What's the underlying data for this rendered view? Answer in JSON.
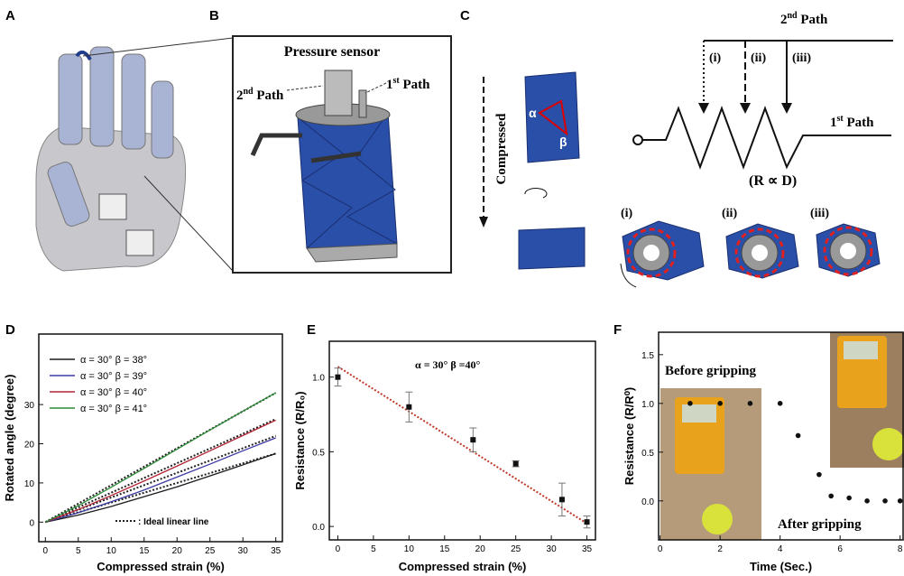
{
  "figure": {
    "panel_labels": [
      "A",
      "B",
      "C",
      "D",
      "E",
      "F"
    ],
    "b": {
      "title": "Pressure sensor",
      "path2": [
        "2",
        "nd",
        " Path"
      ],
      "path1": [
        "1",
        "st",
        " Path"
      ]
    },
    "c": {
      "compressed": "Compressed",
      "alpha": "α",
      "beta": "β",
      "path2": [
        "2",
        "nd",
        " Path"
      ],
      "path1": [
        "1",
        "st",
        " Path"
      ],
      "positions": [
        "(i)",
        "(ii)",
        "(iii)"
      ],
      "relation": "(R ∝ D)",
      "states": [
        "(i)",
        "(ii)",
        "(iii)"
      ]
    }
  },
  "chart_data": [
    {
      "type": "line",
      "x_label": "Compressed strain (%)",
      "y_label": "Rotated angle (degree)",
      "x": [
        0,
        5,
        10,
        15,
        20,
        25,
        30,
        35
      ],
      "series": [
        {
          "name": "α = 30° β = 38°",
          "color": "#1a1a1a",
          "values": [
            0,
            1.8,
            4.0,
            6.5,
            9.0,
            11.8,
            14.6,
            17.5
          ]
        },
        {
          "name": "α = 30° β = 39°",
          "color": "#3a3aa0",
          "values": [
            0,
            2.4,
            5.2,
            8.2,
            11.5,
            14.8,
            18.2,
            21.5
          ]
        },
        {
          "name": "α = 30° β = 40°",
          "color": "#b22234",
          "values": [
            0,
            3.2,
            6.8,
            10.5,
            14.3,
            18.2,
            22.1,
            26
          ]
        },
        {
          "name": "α = 30° β = 41°",
          "color": "#2e8b3a",
          "values": [
            0,
            4.2,
            8.9,
            13.7,
            18.6,
            23.5,
            28.3,
            33
          ]
        }
      ],
      "reference_lines": {
        "label": ": Ideal linear line",
        "color": "#222",
        "x": [
          0,
          35
        ],
        "values": [
          [
            0,
            17.5
          ],
          [
            0,
            22
          ],
          [
            0,
            26.3
          ],
          [
            0,
            33
          ]
        ]
      },
      "xlim": [
        -1,
        36
      ],
      "xticks": [
        0,
        5,
        10,
        15,
        20,
        25,
        30,
        35
      ],
      "ylim": [
        -5,
        48
      ],
      "yticks": [
        0,
        10,
        20,
        30
      ]
    },
    {
      "type": "scatter",
      "annotations": [
        "α = 30° β =40°"
      ],
      "x_label": "Compressed strain (%)",
      "y_label": "Resistance (R/R₀)",
      "x": [
        0,
        10,
        19,
        25,
        31.5,
        35
      ],
      "values": [
        1.0,
        0.8,
        0.58,
        0.42,
        0.18,
        0.03
      ],
      "errors": [
        0.06,
        0.1,
        0.08,
        0.02,
        0.11,
        0.04
      ],
      "color": "#111",
      "fit": {
        "color": "#c0392b",
        "x": [
          0,
          35
        ],
        "values": [
          1.07,
          0.02
        ]
      },
      "xlim": [
        -1.2,
        36.2
      ],
      "xticks": [
        0,
        5,
        10,
        15,
        20,
        25,
        30,
        35
      ],
      "ylim": [
        -0.09,
        1.24
      ],
      "yticks": [
        {
          "value": 0,
          "label": "0.0"
        },
        0.5,
        {
          "value": 1,
          "label": "1.0"
        }
      ]
    },
    {
      "type": "scatter",
      "annotations": [
        "Before gripping",
        "After gripping"
      ],
      "x_label": "Time (Sec.)",
      "y_label": "Resistance (R/R⁰)",
      "x": [
        1,
        2,
        3,
        4,
        4.6,
        5.3,
        5.7,
        6.3,
        6.9,
        7.5,
        8
      ],
      "values": [
        1,
        1,
        1,
        1,
        0.67,
        0.27,
        0.05,
        0.03,
        0,
        0,
        0
      ],
      "color": "#111",
      "xlim": [
        -0.05,
        8.1
      ],
      "xticks": [
        0,
        2,
        4,
        6,
        8
      ],
      "ylim": [
        -0.4,
        1.73
      ],
      "yticks": [
        {
          "value": 0,
          "label": "0.0"
        },
        0.5,
        {
          "value": 1,
          "label": "1.0"
        },
        1.5
      ]
    }
  ]
}
